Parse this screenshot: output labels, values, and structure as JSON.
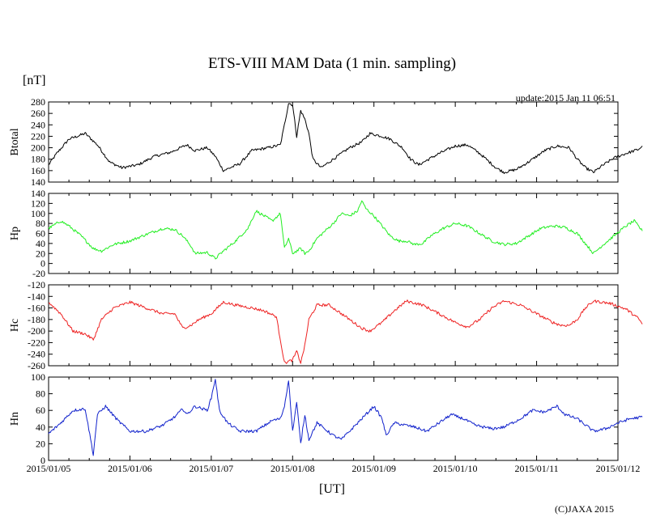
{
  "chart_data": {
    "type": "line",
    "title": "ETS-VIII MAM Data (1 min. sampling)",
    "y_unit": "[nT]",
    "update": "update:2015 Jan 11 06:51",
    "xlabel": "[UT]",
    "copyright": "(C)JAXA 2015",
    "x_ticks": [
      "2015/01/05",
      "2015/01/06",
      "2015/01/07",
      "2015/01/08",
      "2015/01/09",
      "2015/01/10",
      "2015/01/11",
      "2015/01/12"
    ],
    "xlim": [
      0,
      7
    ],
    "panels": [
      {
        "name": "Btotal",
        "color": "#000000",
        "ylim": [
          140,
          280
        ],
        "yticks": [
          140,
          160,
          180,
          200,
          220,
          240,
          260,
          280
        ],
        "points": [
          [
            0.0,
            170
          ],
          [
            0.1,
            190
          ],
          [
            0.25,
            215
          ],
          [
            0.45,
            225
          ],
          [
            0.6,
            205
          ],
          [
            0.75,
            175
          ],
          [
            0.9,
            165
          ],
          [
            1.1,
            170
          ],
          [
            1.3,
            185
          ],
          [
            1.5,
            192
          ],
          [
            1.7,
            205
          ],
          [
            1.8,
            195
          ],
          [
            1.95,
            200
          ],
          [
            2.05,
            185
          ],
          [
            2.15,
            160
          ],
          [
            2.35,
            172
          ],
          [
            2.5,
            195
          ],
          [
            2.7,
            200
          ],
          [
            2.85,
            205
          ],
          [
            2.9,
            240
          ],
          [
            2.95,
            278
          ],
          [
            3.0,
            275
          ],
          [
            3.05,
            220
          ],
          [
            3.1,
            265
          ],
          [
            3.15,
            250
          ],
          [
            3.2,
            225
          ],
          [
            3.25,
            180
          ],
          [
            3.35,
            165
          ],
          [
            3.5,
            180
          ],
          [
            3.7,
            200
          ],
          [
            3.85,
            210
          ],
          [
            3.95,
            225
          ],
          [
            4.1,
            220
          ],
          [
            4.2,
            215
          ],
          [
            4.35,
            200
          ],
          [
            4.45,
            180
          ],
          [
            4.55,
            170
          ],
          [
            4.8,
            190
          ],
          [
            5.0,
            203
          ],
          [
            5.15,
            205
          ],
          [
            5.3,
            190
          ],
          [
            5.5,
            165
          ],
          [
            5.6,
            157
          ],
          [
            5.75,
            162
          ],
          [
            5.9,
            175
          ],
          [
            6.1,
            195
          ],
          [
            6.25,
            203
          ],
          [
            6.4,
            200
          ],
          [
            6.5,
            180
          ],
          [
            6.6,
            165
          ],
          [
            6.7,
            157
          ],
          [
            6.8,
            168
          ],
          [
            6.95,
            182
          ],
          [
            7.1,
            190
          ],
          [
            7.25,
            197
          ],
          [
            7.3,
            203
          ]
        ]
      },
      {
        "name": "Hp",
        "color": "#22ee22",
        "ylim": [
          -20,
          140
        ],
        "yticks": [
          -20,
          0,
          20,
          40,
          60,
          80,
          100,
          120,
          140
        ],
        "points": [
          [
            0.0,
            70
          ],
          [
            0.15,
            85
          ],
          [
            0.25,
            75
          ],
          [
            0.4,
            55
          ],
          [
            0.55,
            30
          ],
          [
            0.65,
            25
          ],
          [
            0.8,
            38
          ],
          [
            1.0,
            45
          ],
          [
            1.2,
            58
          ],
          [
            1.4,
            70
          ],
          [
            1.55,
            68
          ],
          [
            1.65,
            55
          ],
          [
            1.75,
            35
          ],
          [
            1.8,
            20
          ],
          [
            1.95,
            22
          ],
          [
            2.05,
            10
          ],
          [
            2.15,
            25
          ],
          [
            2.3,
            45
          ],
          [
            2.45,
            70
          ],
          [
            2.55,
            105
          ],
          [
            2.65,
            95
          ],
          [
            2.75,
            85
          ],
          [
            2.85,
            100
          ],
          [
            2.9,
            30
          ],
          [
            2.95,
            50
          ],
          [
            3.0,
            20
          ],
          [
            3.1,
            30
          ],
          [
            3.15,
            20
          ],
          [
            3.2,
            25
          ],
          [
            3.3,
            50
          ],
          [
            3.5,
            80
          ],
          [
            3.6,
            100
          ],
          [
            3.7,
            95
          ],
          [
            3.8,
            105
          ],
          [
            3.85,
            125
          ],
          [
            3.9,
            110
          ],
          [
            4.0,
            95
          ],
          [
            4.1,
            75
          ],
          [
            4.2,
            55
          ],
          [
            4.3,
            45
          ],
          [
            4.4,
            45
          ],
          [
            4.5,
            38
          ],
          [
            4.6,
            40
          ],
          [
            4.7,
            55
          ],
          [
            4.85,
            70
          ],
          [
            5.0,
            80
          ],
          [
            5.15,
            75
          ],
          [
            5.3,
            60
          ],
          [
            5.45,
            45
          ],
          [
            5.6,
            38
          ],
          [
            5.75,
            40
          ],
          [
            5.9,
            55
          ],
          [
            6.05,
            70
          ],
          [
            6.2,
            75
          ],
          [
            6.35,
            72
          ],
          [
            6.5,
            60
          ],
          [
            6.6,
            40
          ],
          [
            6.7,
            20
          ],
          [
            6.8,
            35
          ],
          [
            6.95,
            55
          ],
          [
            7.1,
            75
          ],
          [
            7.2,
            85
          ],
          [
            7.3,
            65
          ]
        ]
      },
      {
        "name": "Hc",
        "color": "#ee2222",
        "ylim": [
          -260,
          -120
        ],
        "yticks": [
          -260,
          -240,
          -220,
          -200,
          -180,
          -160,
          -140,
          -120
        ],
        "points": [
          [
            0.0,
            -150
          ],
          [
            0.15,
            -170
          ],
          [
            0.3,
            -200
          ],
          [
            0.45,
            -205
          ],
          [
            0.55,
            -215
          ],
          [
            0.65,
            -180
          ],
          [
            0.8,
            -160
          ],
          [
            1.0,
            -150
          ],
          [
            1.2,
            -160
          ],
          [
            1.4,
            -170
          ],
          [
            1.55,
            -170
          ],
          [
            1.65,
            -195
          ],
          [
            1.75,
            -190
          ],
          [
            1.85,
            -180
          ],
          [
            2.0,
            -170
          ],
          [
            2.15,
            -150
          ],
          [
            2.3,
            -155
          ],
          [
            2.5,
            -160
          ],
          [
            2.65,
            -165
          ],
          [
            2.8,
            -175
          ],
          [
            2.9,
            -255
          ],
          [
            3.0,
            -250
          ],
          [
            3.05,
            -235
          ],
          [
            3.1,
            -255
          ],
          [
            3.15,
            -225
          ],
          [
            3.2,
            -180
          ],
          [
            3.3,
            -155
          ],
          [
            3.45,
            -155
          ],
          [
            3.6,
            -170
          ],
          [
            3.75,
            -185
          ],
          [
            3.85,
            -195
          ],
          [
            3.95,
            -200
          ],
          [
            4.1,
            -185
          ],
          [
            4.25,
            -165
          ],
          [
            4.4,
            -148
          ],
          [
            4.6,
            -155
          ],
          [
            4.8,
            -170
          ],
          [
            5.0,
            -185
          ],
          [
            5.15,
            -193
          ],
          [
            5.3,
            -180
          ],
          [
            5.45,
            -160
          ],
          [
            5.6,
            -148
          ],
          [
            5.8,
            -155
          ],
          [
            6.0,
            -170
          ],
          [
            6.2,
            -185
          ],
          [
            6.3,
            -190
          ],
          [
            6.4,
            -190
          ],
          [
            6.5,
            -180
          ],
          [
            6.6,
            -160
          ],
          [
            6.7,
            -148
          ],
          [
            6.9,
            -152
          ],
          [
            7.1,
            -162
          ],
          [
            7.25,
            -178
          ],
          [
            7.3,
            -188
          ]
        ]
      },
      {
        "name": "Hn",
        "color": "#1122cc",
        "ylim": [
          0,
          100
        ],
        "yticks": [
          0,
          20,
          40,
          60,
          80,
          100
        ],
        "points": [
          [
            0.0,
            32
          ],
          [
            0.15,
            45
          ],
          [
            0.3,
            60
          ],
          [
            0.45,
            62
          ],
          [
            0.55,
            7
          ],
          [
            0.6,
            55
          ],
          [
            0.7,
            65
          ],
          [
            0.85,
            48
          ],
          [
            1.0,
            35
          ],
          [
            1.2,
            35
          ],
          [
            1.4,
            42
          ],
          [
            1.55,
            52
          ],
          [
            1.65,
            62
          ],
          [
            1.7,
            55
          ],
          [
            1.8,
            65
          ],
          [
            1.95,
            60
          ],
          [
            2.0,
            75
          ],
          [
            2.05,
            98
          ],
          [
            2.1,
            60
          ],
          [
            2.2,
            45
          ],
          [
            2.35,
            35
          ],
          [
            2.55,
            35
          ],
          [
            2.75,
            48
          ],
          [
            2.85,
            50
          ],
          [
            2.9,
            65
          ],
          [
            2.95,
            97
          ],
          [
            3.0,
            35
          ],
          [
            3.05,
            70
          ],
          [
            3.1,
            20
          ],
          [
            3.15,
            55
          ],
          [
            3.2,
            25
          ],
          [
            3.3,
            45
          ],
          [
            3.5,
            30
          ],
          [
            3.6,
            25
          ],
          [
            3.75,
            40
          ],
          [
            3.9,
            55
          ],
          [
            4.0,
            65
          ],
          [
            4.1,
            50
          ],
          [
            4.15,
            30
          ],
          [
            4.25,
            45
          ],
          [
            4.5,
            40
          ],
          [
            4.65,
            35
          ],
          [
            4.8,
            45
          ],
          [
            4.95,
            55
          ],
          [
            5.1,
            50
          ],
          [
            5.25,
            42
          ],
          [
            5.45,
            38
          ],
          [
            5.6,
            40
          ],
          [
            5.8,
            50
          ],
          [
            5.95,
            60
          ],
          [
            6.1,
            58
          ],
          [
            6.25,
            65
          ],
          [
            6.35,
            55
          ],
          [
            6.5,
            50
          ],
          [
            6.7,
            35
          ],
          [
            6.85,
            38
          ],
          [
            7.0,
            45
          ],
          [
            7.15,
            50
          ],
          [
            7.3,
            52
          ]
        ]
      }
    ]
  }
}
